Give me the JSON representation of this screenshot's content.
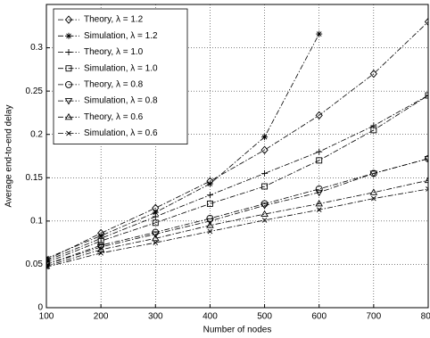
{
  "chart_data": {
    "type": "line",
    "xlabel": "Number of nodes",
    "ylabel": "Average end-to-end delay",
    "x": [
      100,
      200,
      300,
      400,
      500,
      600,
      700,
      800
    ],
    "xlim": [
      100,
      800
    ],
    "xticks": [
      100,
      200,
      300,
      400,
      500,
      600,
      700,
      800
    ],
    "ylim": [
      0,
      0.35
    ],
    "yticks": [
      0,
      0.05,
      0.1,
      0.15,
      0.2,
      0.25,
      0.3
    ],
    "grid": true,
    "legend": "upper left",
    "series": [
      {
        "name": "Theory, λ = 1.2",
        "color": "#000000",
        "marker": "diamond",
        "linestyle": "dashdot",
        "values": [
          0.055,
          0.086,
          0.115,
          0.146,
          0.182,
          0.222,
          0.27,
          0.33
        ]
      },
      {
        "name": "Simulation, λ = 1.2",
        "color": "#000000",
        "marker": "star",
        "linestyle": "dashdot",
        "values": [
          0.057,
          0.083,
          0.11,
          0.143,
          0.197,
          0.316,
          null,
          null
        ]
      },
      {
        "name": "Theory, λ = 1.0",
        "color": "#000000",
        "marker": "plus",
        "linestyle": "dashdot",
        "values": [
          0.054,
          0.08,
          0.105,
          0.13,
          0.155,
          0.18,
          0.21,
          0.245
        ]
      },
      {
        "name": "Simulation, λ = 1.0",
        "color": "#000000",
        "marker": "square",
        "linestyle": "dashdot",
        "values": [
          0.052,
          0.077,
          0.098,
          0.12,
          0.14,
          0.17,
          0.205,
          0.245
        ]
      },
      {
        "name": "Theory, λ = 0.8",
        "color": "#000000",
        "marker": "circle",
        "linestyle": "dashdot",
        "values": [
          0.05,
          0.072,
          0.087,
          0.103,
          0.12,
          0.137,
          0.155,
          0.172
        ]
      },
      {
        "name": "Simulation, λ = 0.8",
        "color": "#000000",
        "marker": "triangle-down",
        "linestyle": "dashdot",
        "values": [
          0.05,
          0.07,
          0.085,
          0.1,
          0.118,
          0.133,
          0.155,
          0.172
        ]
      },
      {
        "name": "Theory, λ = 0.6",
        "color": "#000000",
        "marker": "triangle",
        "linestyle": "dashdot",
        "values": [
          0.048,
          0.067,
          0.08,
          0.095,
          0.108,
          0.12,
          0.133,
          0.147
        ]
      },
      {
        "name": "Simulation, λ = 0.6",
        "color": "#000000",
        "marker": "x",
        "linestyle": "dashdot",
        "values": [
          0.047,
          0.063,
          0.075,
          0.088,
          0.101,
          0.113,
          0.126,
          0.137
        ]
      }
    ]
  }
}
